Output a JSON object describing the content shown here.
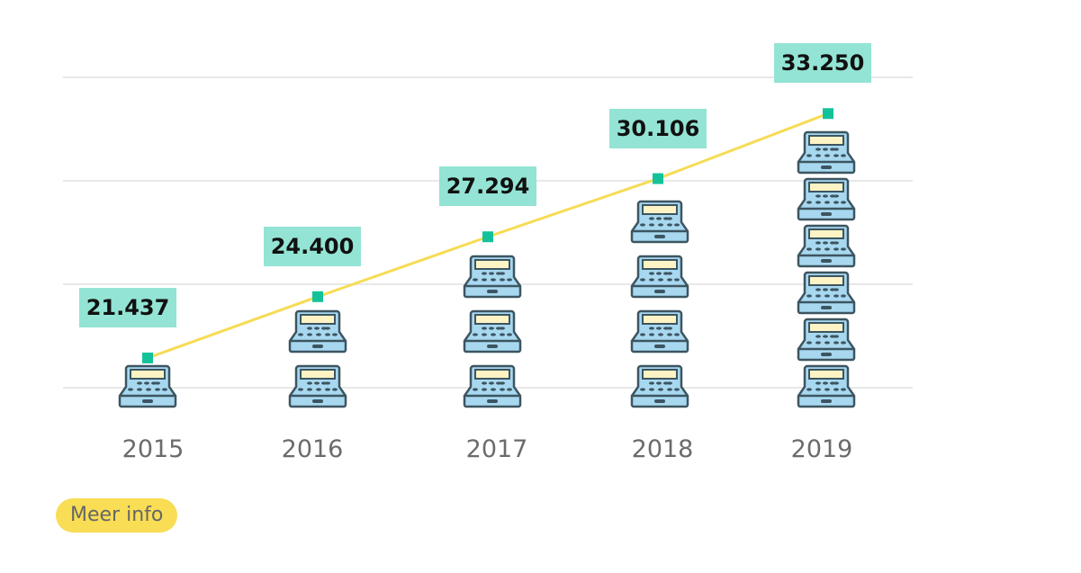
{
  "chart_data": {
    "type": "line",
    "title": "",
    "xlabel": "",
    "ylabel": "",
    "categories": [
      "2015",
      "2016",
      "2017",
      "2018",
      "2019"
    ],
    "values": [
      21437,
      24400,
      27294,
      30106,
      33250
    ],
    "value_labels": [
      "21.437",
      "24.400",
      "27.294",
      "30.106",
      "33.250"
    ],
    "icon_counts": [
      1,
      2,
      3,
      4,
      6
    ],
    "icon": "cash-register-icon",
    "ylim": [
      20000,
      35000
    ],
    "yticks": [
      20000,
      25000,
      30000,
      35000
    ],
    "grid": true,
    "colors": {
      "line": "#f6dc55",
      "marker": "#13c29a",
      "label_bg": "#93e4d4",
      "grid": "#e8e8e8"
    }
  },
  "button": {
    "label": "Meer info",
    "color": "#f8dd55"
  }
}
